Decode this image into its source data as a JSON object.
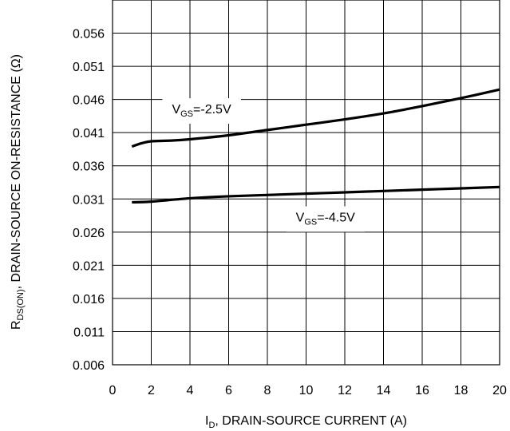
{
  "chart_data": {
    "type": "line",
    "xlim": [
      0,
      20
    ],
    "ylim": [
      0.006,
      0.061
    ],
    "x_ticks": [
      0,
      2,
      4,
      6,
      8,
      10,
      12,
      14,
      16,
      18,
      20
    ],
    "y_ticks": [
      0.006,
      0.011,
      0.016,
      0.021,
      0.026,
      0.031,
      0.036,
      0.041,
      0.046,
      0.051,
      0.056
    ],
    "x_tick_labels": [
      "0",
      "2",
      "4",
      "6",
      "8",
      "10",
      "12",
      "14",
      "16",
      "18",
      "20"
    ],
    "y_tick_labels": [
      "0.006",
      "0.011",
      "0.016",
      "0.021",
      "0.026",
      "0.031",
      "0.036",
      "0.041",
      "0.046",
      "0.051",
      "0.056"
    ],
    "grid": true,
    "xlabel": {
      "main": "I",
      "sub": "D",
      "rest": ", DRAIN-SOURCE CURRENT (A)"
    },
    "ylabel": {
      "main": "R",
      "sub": "DS(ON)",
      "rest": ", DRAIN-SOURCE ON-RESISTANCE (Ω)"
    },
    "series": [
      {
        "label": {
          "main": "V",
          "sub": "GS",
          "rest": "=-2.5V"
        },
        "label_at": [
          4.6,
          0.0439
        ],
        "x": [
          1.0,
          1.5,
          2.0,
          3.0,
          4.0,
          6.0,
          8.0,
          10.0,
          12.0,
          14.0,
          16.0,
          18.0,
          20.0
        ],
        "y": [
          0.0389,
          0.0394,
          0.0397,
          0.0398,
          0.04,
          0.0406,
          0.0414,
          0.0422,
          0.043,
          0.0439,
          0.045,
          0.0462,
          0.0475
        ]
      },
      {
        "label": {
          "main": "V",
          "sub": "GS",
          "rest": "=-4.5V"
        },
        "label_at": [
          11.0,
          0.0276
        ],
        "x": [
          1.0,
          2.0,
          4.0,
          6.0,
          8.0,
          10.0,
          12.0,
          14.0,
          16.0,
          18.0,
          20.0
        ],
        "y": [
          0.0305,
          0.0306,
          0.0311,
          0.0314,
          0.0316,
          0.0318,
          0.032,
          0.0322,
          0.0324,
          0.0326,
          0.0328
        ]
      }
    ]
  }
}
